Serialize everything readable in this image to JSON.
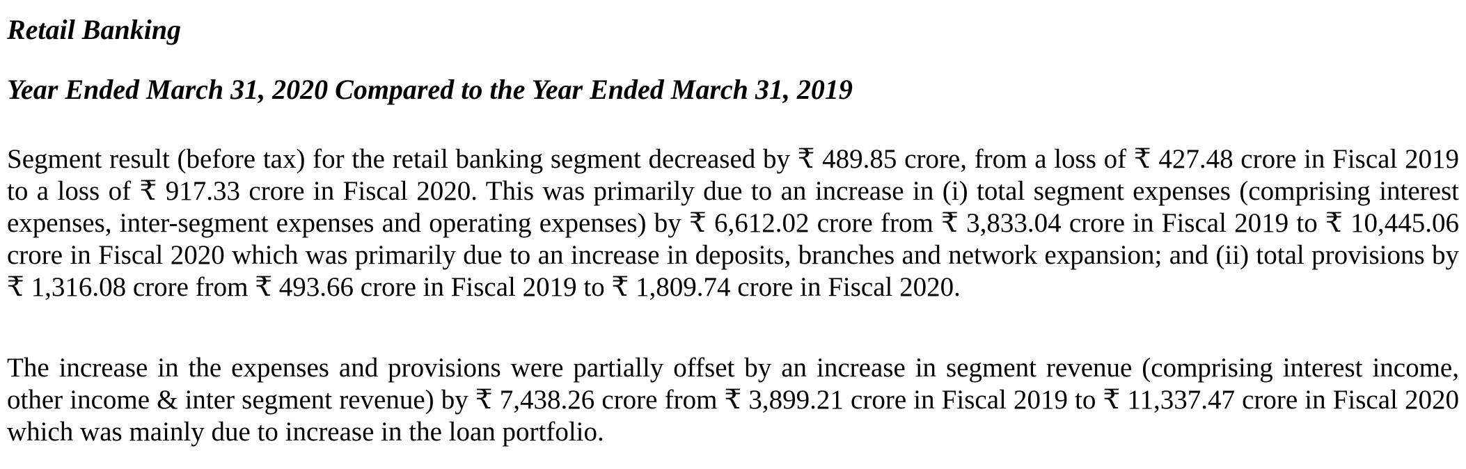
{
  "document": {
    "heading": "Retail Banking",
    "subheading": "Year Ended March 31, 2020 Compared to the Year Ended March 31, 2019",
    "paragraphs": [
      "Segment result (before tax) for the retail banking segment decreased by ₹ 489.85 crore, from a loss of ₹ 427.48 crore in Fiscal 2019 to a loss of ₹ 917.33 crore in Fiscal 2020. This was primarily due to an increase in (i) total segment expenses (comprising interest expenses, inter-segment expenses and operating expenses) by ₹ 6,612.02 crore from ₹ 3,833.04 crore in Fiscal 2019 to ₹ 10,445.06 crore in Fiscal 2020 which was primarily due to an increase in deposits, branches and network expansion; and (ii) total provisions by ₹ 1,316.08 crore from ₹ 493.66 crore in Fiscal 2019 to ₹ 1,809.74 crore in Fiscal 2020.",
      "The increase in the expenses and provisions were partially offset by an increase in segment revenue (comprising interest income, other income & inter segment revenue) by ₹ 7,438.26 crore from ₹ 3,899.21 crore in Fiscal 2019 to ₹ 11,337.47 crore in Fiscal 2020 which was mainly due to increase in the loan portfolio."
    ]
  }
}
